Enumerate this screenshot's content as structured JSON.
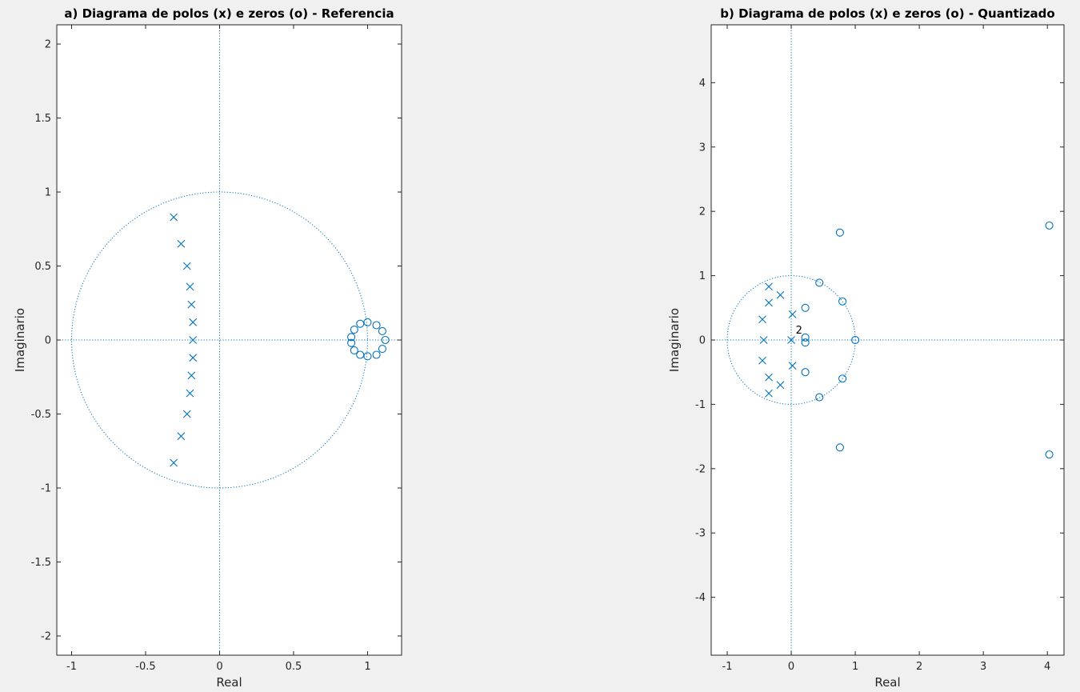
{
  "chart_data": [
    {
      "type": "scatter",
      "title": "a) Diagrama de polos (x) e zeros (o) - Referencia",
      "xlabel": "Real",
      "ylabel": "Imaginario",
      "xlim": [
        -1.1,
        1.23
      ],
      "ylim": [
        -2.13,
        2.13
      ],
      "xticks": [
        -1,
        -0.5,
        0,
        0.5,
        1
      ],
      "xtick_labels": [
        "-1",
        "-0.5",
        "0",
        "0.5",
        "1"
      ],
      "yticks": [
        -2,
        -1.5,
        -1,
        -0.5,
        0,
        0.5,
        1,
        1.5,
        2
      ],
      "ytick_labels": [
        "-2",
        "-1.5",
        "-1",
        "-0.5",
        "0",
        "0.5",
        "1",
        "1.5",
        "2"
      ],
      "grid": false,
      "unit_circle": true,
      "color": "#0072bd",
      "poles": [
        [
          -0.31,
          0.83
        ],
        [
          -0.26,
          0.65
        ],
        [
          -0.22,
          0.5
        ],
        [
          -0.2,
          0.36
        ],
        [
          -0.19,
          0.24
        ],
        [
          -0.18,
          0.12
        ],
        [
          -0.18,
          0.0
        ],
        [
          -0.18,
          -0.12
        ],
        [
          -0.19,
          -0.24
        ],
        [
          -0.2,
          -0.36
        ],
        [
          -0.22,
          -0.5
        ],
        [
          -0.26,
          -0.65
        ],
        [
          -0.31,
          -0.83
        ]
      ],
      "zeros": [
        [
          1.12,
          0.0
        ],
        [
          1.1,
          0.06
        ],
        [
          1.06,
          0.1
        ],
        [
          1.0,
          0.12
        ],
        [
          0.95,
          0.11
        ],
        [
          0.91,
          0.07
        ],
        [
          0.89,
          0.02
        ],
        [
          0.89,
          -0.02
        ],
        [
          0.91,
          -0.07
        ],
        [
          0.95,
          -0.1
        ],
        [
          1.0,
          -0.11
        ],
        [
          1.06,
          -0.1
        ],
        [
          1.1,
          -0.06
        ]
      ],
      "annotations": []
    },
    {
      "type": "scatter",
      "title": "b) Diagrama de polos (x) e zeros (o) - Quantizado",
      "xlabel": "Real",
      "ylabel": "Imaginario",
      "xlim": [
        -1.25,
        4.26
      ],
      "ylim": [
        -4.9,
        4.9
      ],
      "xticks": [
        -1,
        0,
        1,
        2,
        3,
        4
      ],
      "xtick_labels": [
        "-1",
        "0",
        "1",
        "2",
        "3",
        "4"
      ],
      "yticks": [
        -4,
        -3,
        -2,
        -1,
        0,
        1,
        2,
        3,
        4
      ],
      "ytick_labels": [
        "-4",
        "-3",
        "-2",
        "-1",
        "0",
        "1",
        "2",
        "3",
        "4"
      ],
      "grid": false,
      "unit_circle": true,
      "color": "#0072bd",
      "poles": [
        [
          -0.35,
          0.83
        ],
        [
          -0.35,
          0.58
        ],
        [
          -0.45,
          0.32
        ],
        [
          -0.43,
          0.0
        ],
        [
          -0.45,
          -0.32
        ],
        [
          -0.35,
          -0.58
        ],
        [
          -0.35,
          -0.83
        ],
        [
          -0.17,
          0.7
        ],
        [
          -0.17,
          -0.7
        ],
        [
          0.02,
          0.4
        ],
        [
          0.0,
          0.0
        ],
        [
          0.02,
          -0.4
        ]
      ],
      "zeros": [
        [
          4.03,
          1.78
        ],
        [
          4.03,
          -1.78
        ],
        [
          0.76,
          1.67
        ],
        [
          0.76,
          -1.67
        ],
        [
          0.44,
          0.89
        ],
        [
          0.44,
          -0.89
        ],
        [
          0.8,
          0.6
        ],
        [
          0.8,
          -0.6
        ],
        [
          1.0,
          0.0
        ],
        [
          0.22,
          0.5
        ],
        [
          0.22,
          -0.5
        ],
        [
          0.22,
          0.04
        ],
        [
          0.22,
          -0.04
        ]
      ],
      "annotations": [
        {
          "text": "2",
          "x": 0.07,
          "y": 0.1
        }
      ]
    }
  ]
}
